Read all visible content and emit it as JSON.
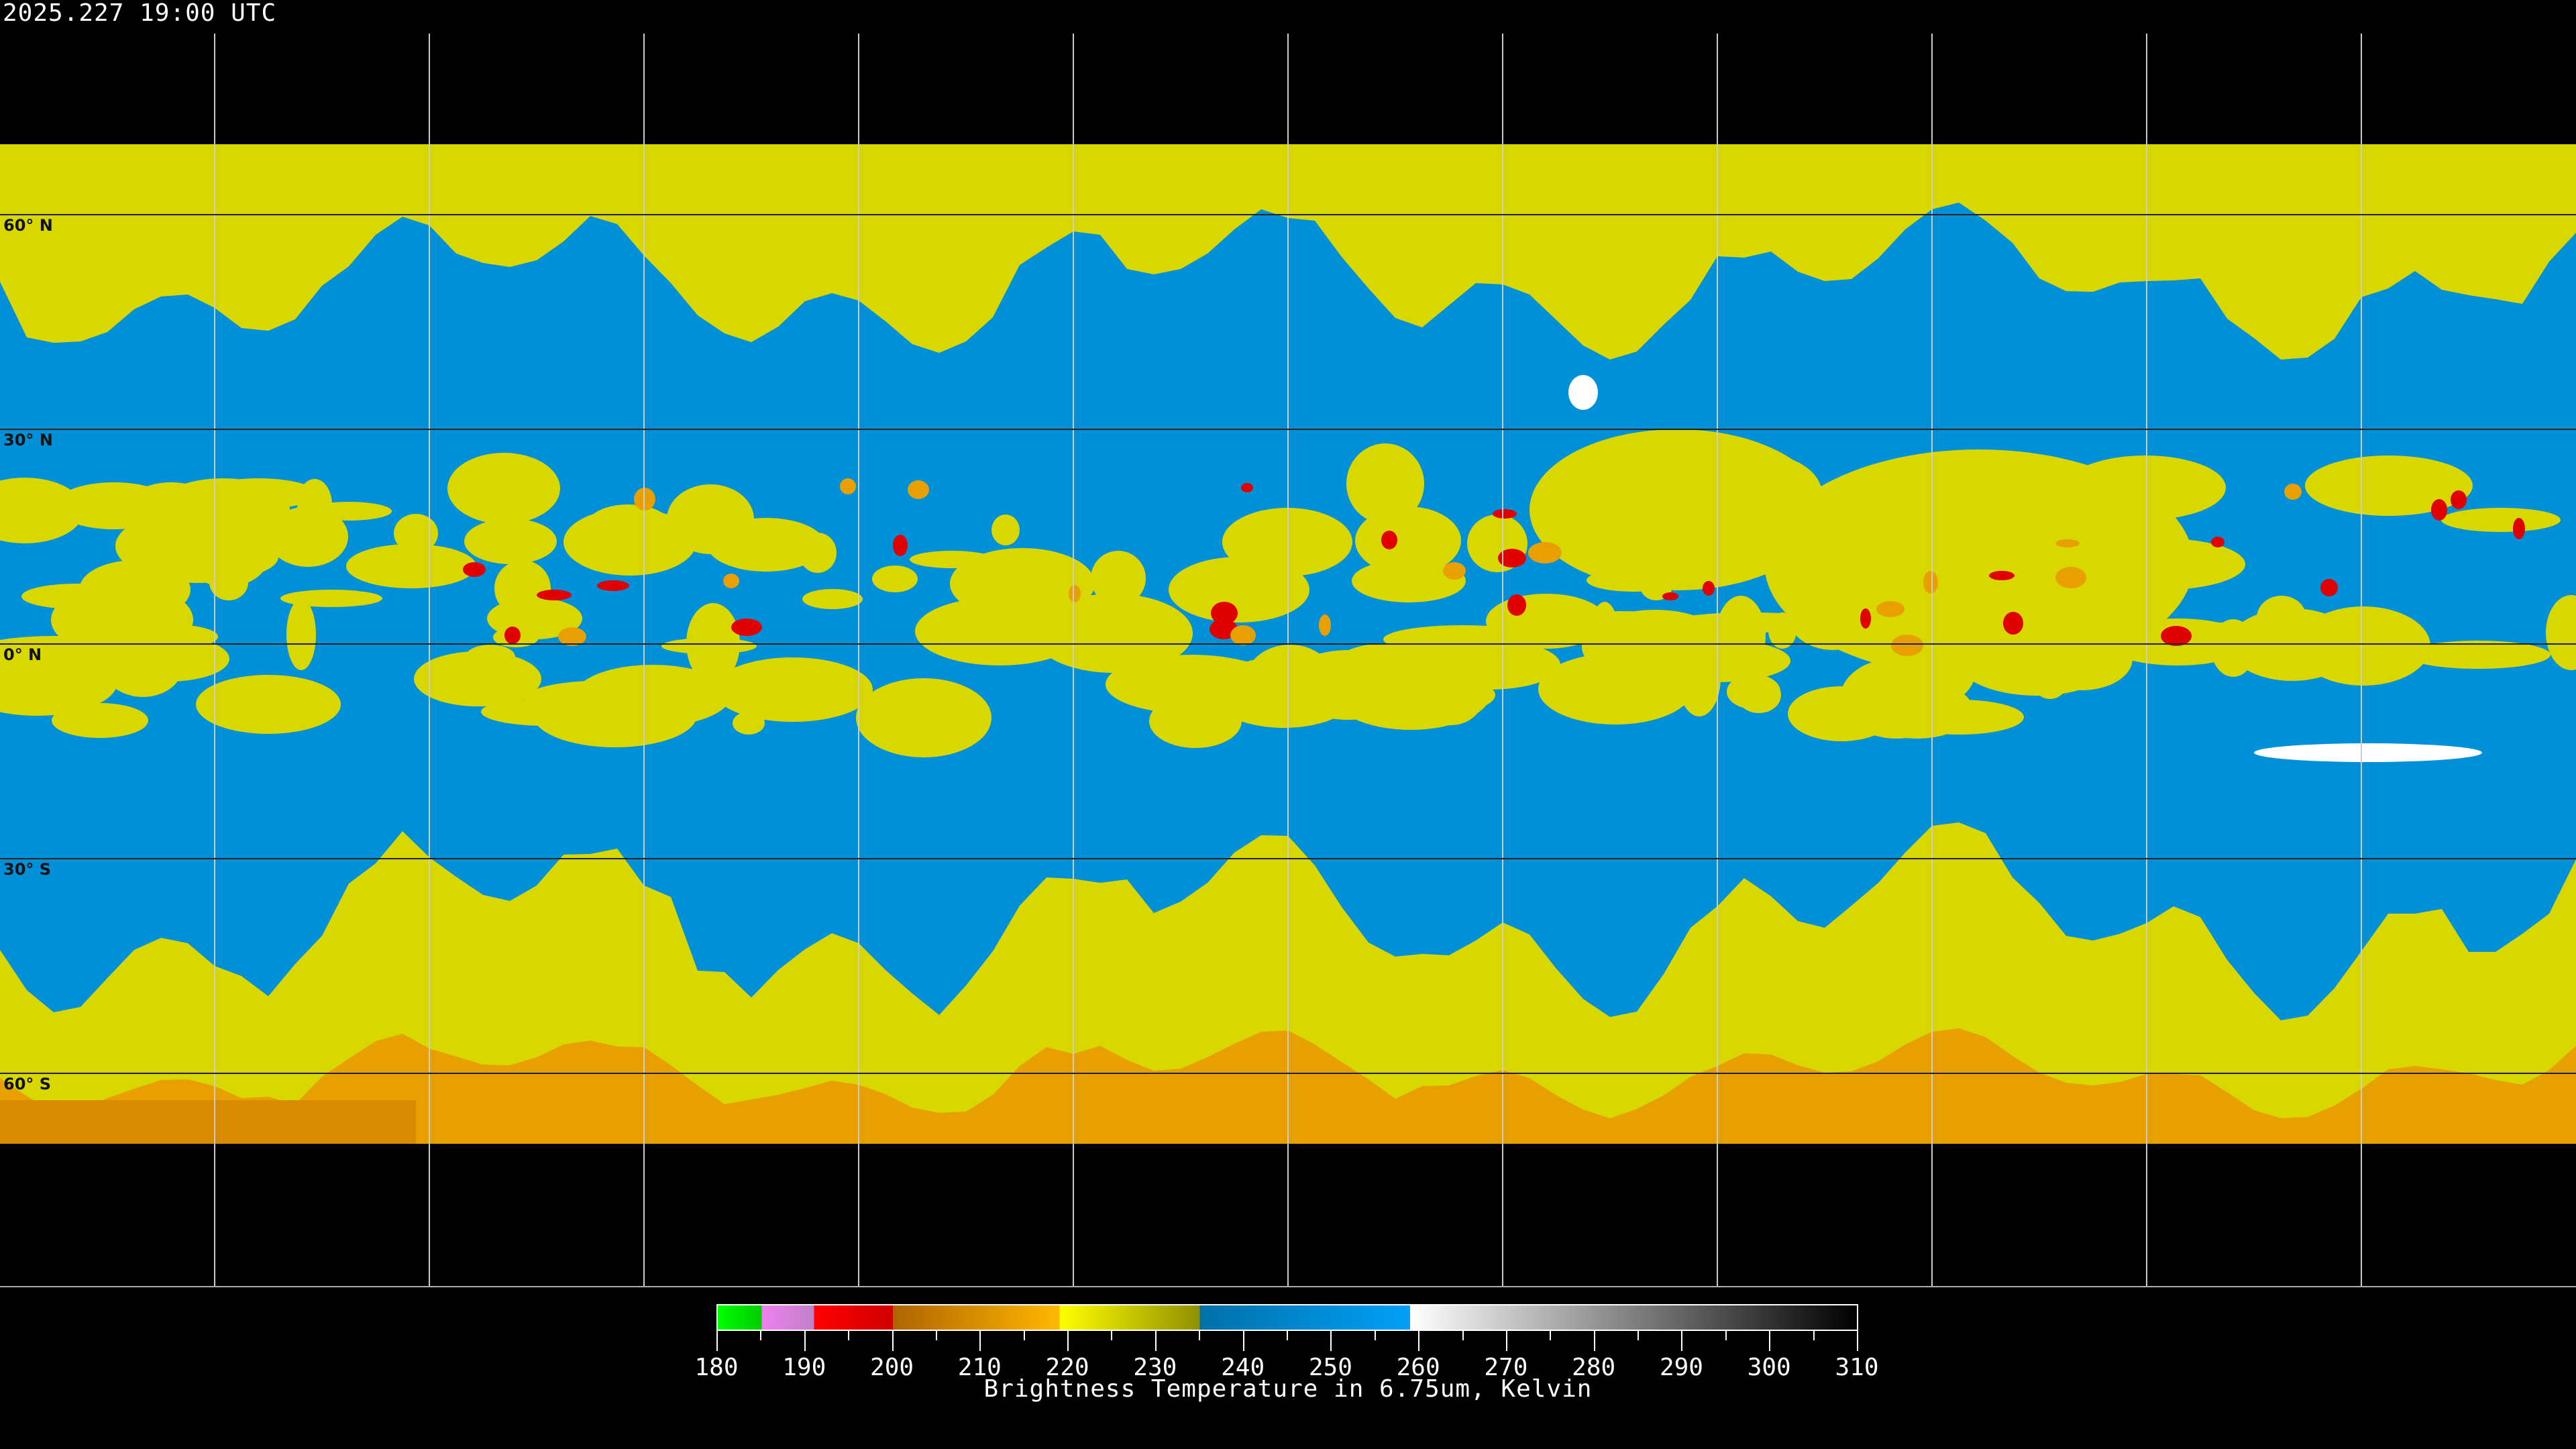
{
  "header": {
    "timestamp": "2025.227 19:00 UTC"
  },
  "map": {
    "projection": "equirectangular",
    "lat_labels": [
      "60° N",
      "30° N",
      "0° N",
      "30° S",
      "60° S"
    ],
    "grid_spacing_deg": 30
  },
  "colorbar": {
    "title": "Brightness Temperature in 6.75um, Kelvin",
    "min": 180,
    "max": 310,
    "tick_labels": [
      "180",
      "190",
      "200",
      "210",
      "220",
      "230",
      "240",
      "250",
      "260",
      "270",
      "280",
      "290",
      "300",
      "310"
    ],
    "minor_tick_step": 5,
    "segments": [
      {
        "from": 180,
        "to": 185,
        "start": "#00ff00",
        "end": "#00cc00"
      },
      {
        "from": 185,
        "to": 191,
        "start": "#f080f0",
        "end": "#c080c8"
      },
      {
        "from": 191,
        "to": 200,
        "start": "#ff0000",
        "end": "#d00000"
      },
      {
        "from": 200,
        "to": 219,
        "start": "#b06400",
        "end": "#ffb800"
      },
      {
        "from": 219,
        "to": 235,
        "start": "#ffff00",
        "end": "#909000"
      },
      {
        "from": 235,
        "to": 259,
        "start": "#0070a8",
        "end": "#00a0f8"
      },
      {
        "from": 259,
        "to": 310,
        "start": "#ffffff",
        "end": "#000000"
      }
    ]
  },
  "colors": {
    "moist": "#0090d8",
    "dry_yellow": "#d8d800",
    "cold_orange": "#e8a000",
    "deep_red": "#e00000",
    "background": "#000000"
  }
}
